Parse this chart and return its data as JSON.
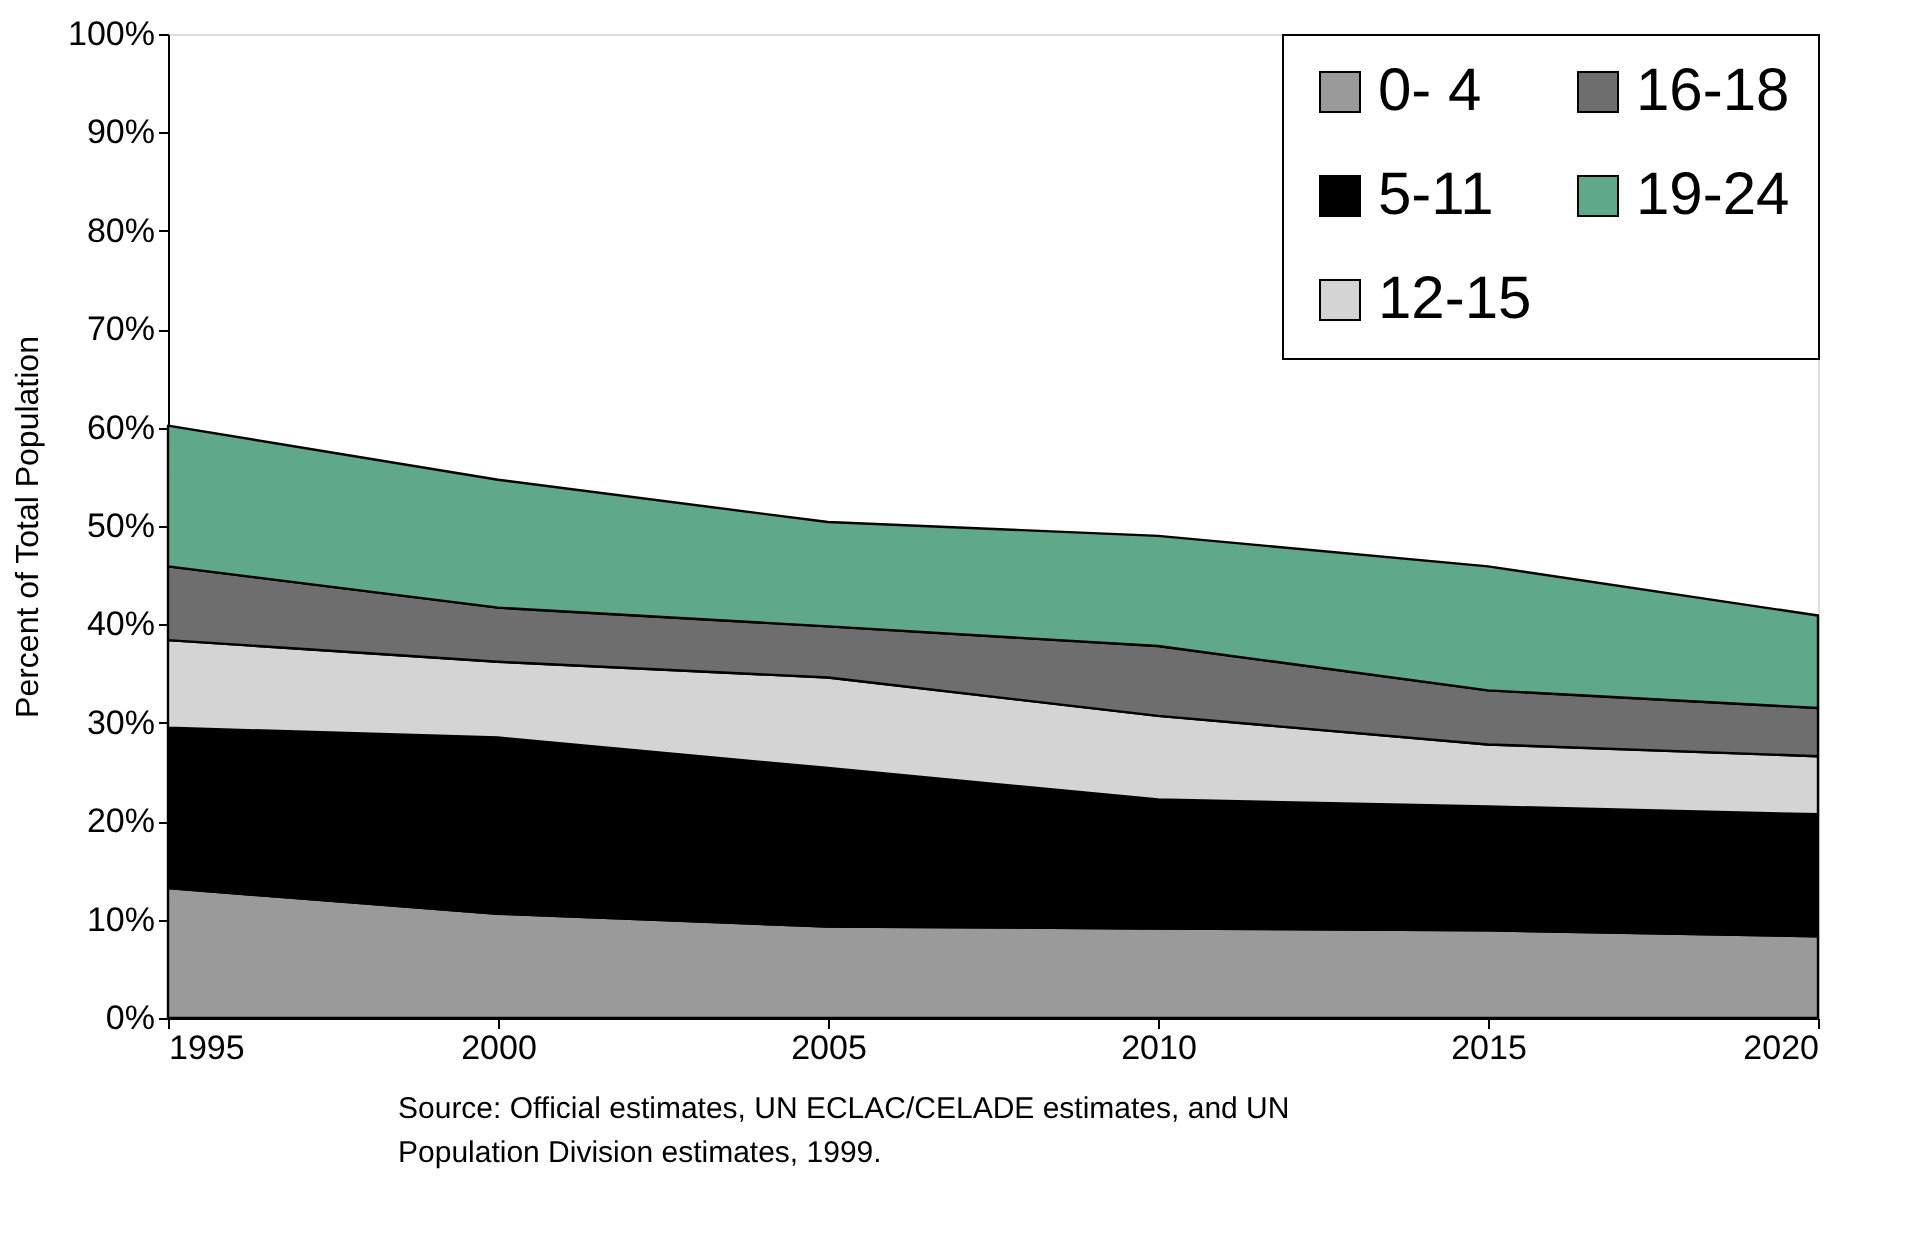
{
  "chart_data": {
    "type": "area",
    "stacked": true,
    "ylabel": "Percent of Total Population",
    "x": [
      1995,
      2000,
      2005,
      2010,
      2015,
      2020
    ],
    "series": [
      {
        "name": "0- 4",
        "color": "#9a9a9a",
        "values": [
          13.2,
          10.6,
          9.3,
          9.1,
          8.9,
          8.3
        ]
      },
      {
        "name": "5-11",
        "color": "#000000",
        "values": [
          16.3,
          17.9,
          16.1,
          13.1,
          12.6,
          12.4
        ]
      },
      {
        "name": "12-15",
        "color": "#d4d4d4",
        "values": [
          8.9,
          7.7,
          9.2,
          8.5,
          6.3,
          5.9
        ]
      },
      {
        "name": "16-18",
        "color": "#6e6e6e",
        "values": [
          7.5,
          5.5,
          5.2,
          7.1,
          5.5,
          4.9
        ]
      },
      {
        "name": "19-24",
        "color": "#5fa88a",
        "values": [
          14.3,
          13.0,
          10.6,
          11.2,
          12.6,
          9.4
        ]
      }
    ],
    "xlim": [
      1995,
      2020
    ],
    "xticks": [
      1995,
      2000,
      2005,
      2010,
      2015,
      2020
    ],
    "ylim": [
      0,
      100
    ],
    "yticks": [
      {
        "value": 0,
        "label": "0%"
      },
      {
        "value": 10,
        "label": "10%"
      },
      {
        "value": 20,
        "label": "20%"
      },
      {
        "value": 30,
        "label": "30%"
      },
      {
        "value": 40,
        "label": "40%"
      },
      {
        "value": 50,
        "label": "50%"
      },
      {
        "value": 60,
        "label": "60%"
      },
      {
        "value": 70,
        "label": "70%"
      },
      {
        "value": 80,
        "label": "80%"
      },
      {
        "value": 90,
        "label": "90%"
      },
      {
        "value": 100,
        "label": "100%"
      }
    ],
    "grid": false,
    "legend": "top right",
    "annotations": [
      "Source: Official estimates, UN ECLAC/CELADE estimates, and UN Population Division estimates, 1999."
    ]
  }
}
